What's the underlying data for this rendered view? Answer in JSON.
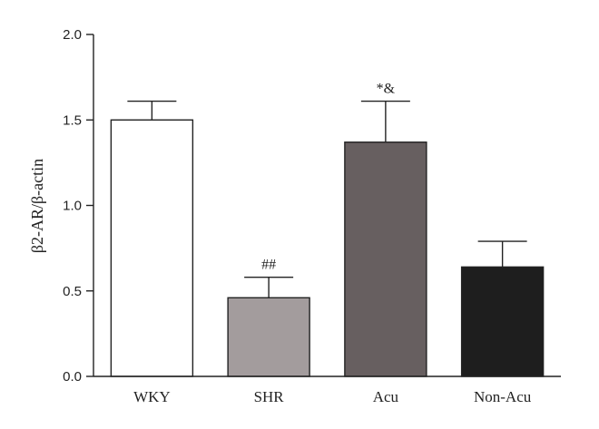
{
  "chart_data": {
    "type": "bar",
    "title": "",
    "xlabel": "",
    "ylabel": "β2-AR/β-actin",
    "ylim": [
      0,
      2.0
    ],
    "yticks": [
      0.0,
      0.5,
      1.0,
      1.5,
      2.0
    ],
    "ytick_labels": [
      "0.0",
      "0.5",
      "1.0",
      "1.5",
      "2.0"
    ],
    "grid": false,
    "categories": [
      "WKY",
      "SHR",
      "Acu",
      "Non-Acu"
    ],
    "values": [
      1.5,
      0.46,
      1.37,
      0.64
    ],
    "errors": [
      0.11,
      0.12,
      0.24,
      0.15
    ],
    "colors": [
      "#ffffff",
      "#a39c9d",
      "#675f60",
      "#1e1e1e"
    ],
    "annotations": [
      "",
      "##",
      "*&",
      ""
    ]
  }
}
